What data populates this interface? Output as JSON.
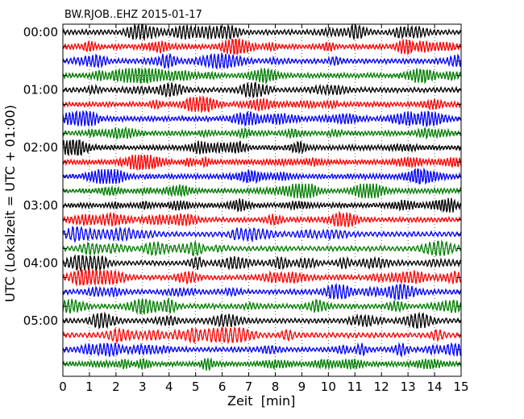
{
  "chart_data": {
    "type": "line",
    "title": "BW.RJOB..EHZ 2015-01-17",
    "xlabel": "Zeit  [min]",
    "ylabel": "UTC (Lokalzeit = UTC + 01:00)",
    "xlim": [
      0,
      15
    ],
    "x_ticks": [
      "0",
      "1",
      "2",
      "3",
      "4",
      "5",
      "6",
      "7",
      "8",
      "9",
      "10",
      "11",
      "12",
      "13",
      "14",
      "15"
    ],
    "y_ticks": [
      "00:00",
      "01:00",
      "02:00",
      "03:00",
      "04:00",
      "05:00"
    ],
    "rows_per_hour": 4,
    "minutes_per_row": 15,
    "trace_count": 24,
    "trace_colors": [
      "#000000",
      "#ff0000",
      "#0000ff",
      "#007f00"
    ],
    "grid": true,
    "grid_style": "dotted"
  }
}
